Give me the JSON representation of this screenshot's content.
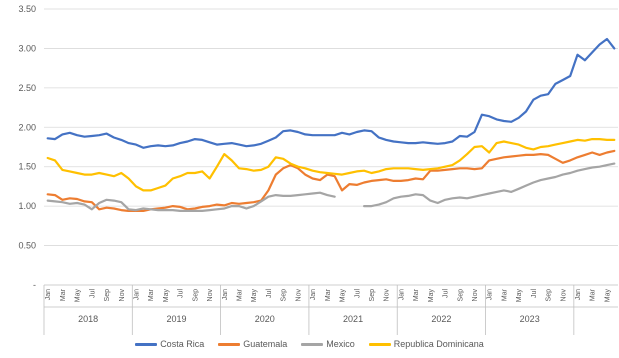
{
  "chart_data": {
    "type": "line",
    "title": "",
    "xlabel": "",
    "ylabel": "",
    "ylim": [
      0,
      3.5
    ],
    "yticks": [
      "3.50",
      "3.00",
      "2.50",
      "2.00",
      "1.50",
      "1.00",
      "0.50",
      "-"
    ],
    "month_labels": [
      "Jan",
      "Mar",
      "May",
      "Jul",
      "Sep",
      "Nov"
    ],
    "years": [
      "2018",
      "2019",
      "2020",
      "2021",
      "2022",
      "2023"
    ],
    "legend_position": "bottom",
    "grid": true,
    "series": [
      {
        "name": "Costa Rica",
        "color": "#4472C4",
        "values": [
          1.86,
          1.85,
          1.91,
          1.93,
          1.9,
          1.88,
          1.89,
          1.9,
          1.92,
          1.87,
          1.84,
          1.8,
          1.78,
          1.74,
          1.76,
          1.77,
          1.76,
          1.77,
          1.8,
          1.82,
          1.85,
          1.84,
          1.81,
          1.78,
          1.79,
          1.8,
          1.78,
          1.76,
          1.77,
          1.79,
          1.83,
          1.87,
          1.95,
          1.96,
          1.94,
          1.91,
          1.9,
          1.9,
          1.9,
          1.9,
          1.93,
          1.91,
          1.94,
          1.96,
          1.95,
          1.87,
          1.84,
          1.82,
          1.81,
          1.8,
          1.8,
          1.81,
          1.8,
          1.79,
          1.8,
          1.82,
          1.89,
          1.88,
          1.94,
          2.16,
          2.14,
          2.1,
          2.08,
          2.07,
          2.12,
          2.2,
          2.35,
          2.4,
          2.42,
          2.55,
          2.6,
          2.65,
          2.92,
          2.85,
          2.95,
          3.05,
          3.12,
          3.0
        ]
      },
      {
        "name": "Guatemala",
        "color": "#ED7D31",
        "values": [
          1.15,
          1.14,
          1.08,
          1.1,
          1.09,
          1.06,
          1.05,
          0.96,
          0.98,
          0.97,
          0.95,
          0.94,
          0.94,
          0.94,
          0.96,
          0.97,
          0.98,
          1.0,
          0.99,
          0.96,
          0.97,
          0.99,
          1.0,
          1.02,
          1.01,
          1.04,
          1.03,
          1.04,
          1.05,
          1.07,
          1.2,
          1.4,
          1.48,
          1.52,
          1.48,
          1.4,
          1.35,
          1.33,
          1.4,
          1.38,
          1.2,
          1.28,
          1.27,
          1.3,
          1.32,
          1.33,
          1.34,
          1.32,
          1.32,
          1.33,
          1.35,
          1.34,
          1.45,
          1.45,
          1.46,
          1.47,
          1.48,
          1.48,
          1.47,
          1.48,
          1.58,
          1.6,
          1.62,
          1.63,
          1.64,
          1.65,
          1.65,
          1.66,
          1.65,
          1.6,
          1.55,
          1.58,
          1.62,
          1.65,
          1.68,
          1.65,
          1.68,
          1.7
        ]
      },
      {
        "name": "Mexico",
        "color": "#A5A5A5",
        "values": [
          1.07,
          1.06,
          1.05,
          1.03,
          1.04,
          1.02,
          0.96,
          1.04,
          1.08,
          1.07,
          1.05,
          0.96,
          0.95,
          0.97,
          0.96,
          0.95,
          0.95,
          0.95,
          0.94,
          0.94,
          0.94,
          0.94,
          0.95,
          0.96,
          0.97,
          1.0,
          1.0,
          0.97,
          1.0,
          1.06,
          1.12,
          1.14,
          1.13,
          1.13,
          1.14,
          1.15,
          1.16,
          1.17,
          1.14,
          1.12,
          null,
          null,
          null,
          1.0,
          1.0,
          1.02,
          1.05,
          1.1,
          1.12,
          1.13,
          1.15,
          1.14,
          1.07,
          1.04,
          1.08,
          1.1,
          1.11,
          1.1,
          1.12,
          1.14,
          1.16,
          1.18,
          1.2,
          1.18,
          1.22,
          1.26,
          1.3,
          1.33,
          1.35,
          1.37,
          1.4,
          1.42,
          1.45,
          1.47,
          1.49,
          1.5,
          1.52,
          1.54
        ]
      },
      {
        "name": "Republica Dominicana",
        "color": "#FFC000",
        "values": [
          1.61,
          1.58,
          1.46,
          1.44,
          1.42,
          1.4,
          1.4,
          1.42,
          1.4,
          1.38,
          1.42,
          1.35,
          1.25,
          1.2,
          1.2,
          1.23,
          1.26,
          1.35,
          1.38,
          1.42,
          1.42,
          1.44,
          1.35,
          1.5,
          1.66,
          1.58,
          1.48,
          1.47,
          1.45,
          1.46,
          1.5,
          1.62,
          1.6,
          1.54,
          1.5,
          1.48,
          1.45,
          1.43,
          1.42,
          1.41,
          1.4,
          1.42,
          1.44,
          1.45,
          1.42,
          1.44,
          1.47,
          1.48,
          1.48,
          1.48,
          1.47,
          1.46,
          1.47,
          1.48,
          1.5,
          1.52,
          1.58,
          1.66,
          1.75,
          1.76,
          1.68,
          1.8,
          1.82,
          1.8,
          1.78,
          1.74,
          1.72,
          1.75,
          1.76,
          1.78,
          1.8,
          1.82,
          1.84,
          1.83,
          1.85,
          1.85,
          1.84,
          1.84
        ]
      }
    ]
  }
}
